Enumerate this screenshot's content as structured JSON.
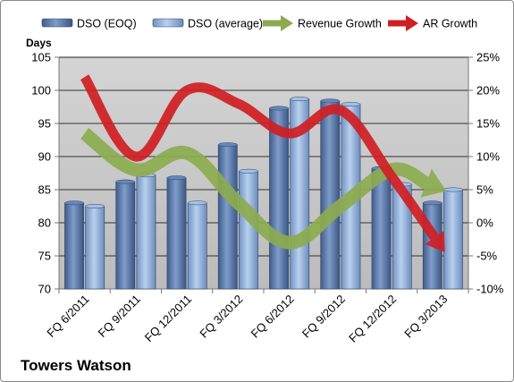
{
  "chart_data": {
    "type": "bar",
    "categories": [
      "FQ 6/2011",
      "FQ 9/2011",
      "FQ 12/2011",
      "FQ 3/2012",
      "FQ 6/2012",
      "FQ 9/2012",
      "FQ 12/2012",
      "FQ 3/2013"
    ],
    "series": [
      {
        "name": "DSO (EOQ)",
        "type": "bar",
        "axis": "left",
        "values": [
          83.0,
          86.2,
          86.8,
          91.8,
          97.3,
          98.4,
          88.2,
          83.0
        ]
      },
      {
        "name": "DSO (average)",
        "type": "bar",
        "axis": "left",
        "values": [
          82.5,
          87.2,
          83.0,
          87.8,
          98.7,
          97.9,
          85.8,
          85.0
        ]
      },
      {
        "name": "Revenue Growth",
        "type": "arrow",
        "axis": "right",
        "values": [
          13.5,
          8.0,
          10.5,
          3.0,
          -3.0,
          2.5,
          8.0,
          5.0
        ]
      },
      {
        "name": "AR Growth",
        "type": "arrow",
        "axis": "right",
        "values": [
          22.0,
          10.0,
          20.0,
          18.0,
          13.5,
          17.0,
          7.0,
          -4.0
        ]
      }
    ],
    "ylabel": "Days",
    "ylim": [
      70,
      105
    ],
    "yticks": [
      70,
      75,
      80,
      85,
      90,
      95,
      100,
      105
    ],
    "y2lim": [
      -10,
      25
    ],
    "y2ticks": [
      "-10%",
      "-5%",
      "0%",
      "5%",
      "10%",
      "15%",
      "20%",
      "25%"
    ],
    "grid": true,
    "legend_position": "top",
    "colors": {
      "dso_eoq": "#4f6fa0",
      "dso_avg": "#88a8d4",
      "revenue_growth": "#8cab4f",
      "ar_growth": "#d01e23",
      "plot_bg": "#c6c6c6"
    }
  },
  "company_name": "Towers Watson"
}
